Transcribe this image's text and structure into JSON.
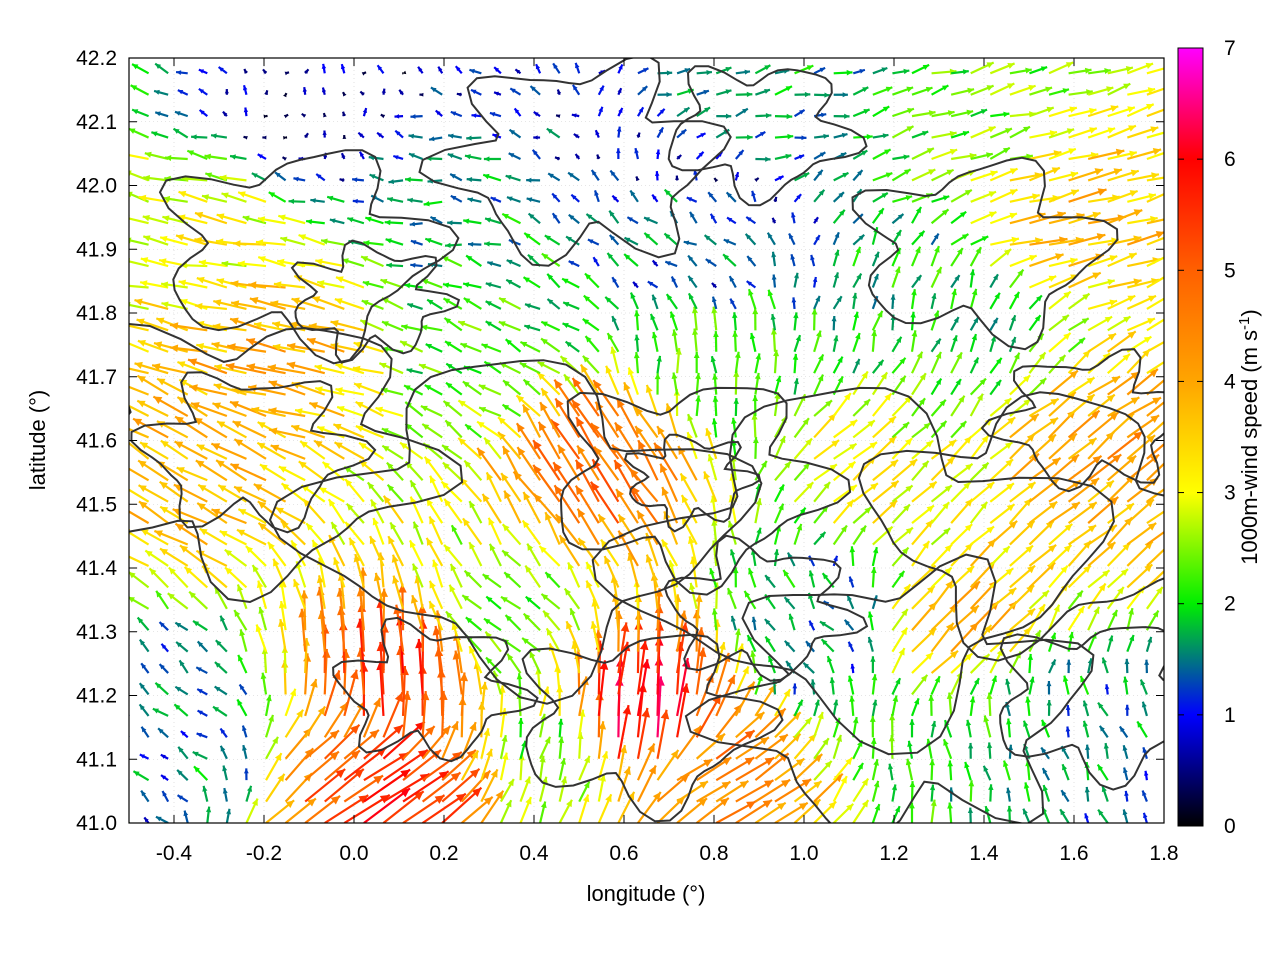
{
  "chart_data": {
    "type": "vector-field",
    "xlabel": "longitude (°)",
    "ylabel": "latitude (°)",
    "xlim": [
      -0.5,
      1.8
    ],
    "ylim": [
      41.0,
      42.2
    ],
    "x_ticks": [
      "-0.4",
      "-0.2",
      "0.0",
      "0.2",
      "0.4",
      "0.6",
      "0.8",
      "1.0",
      "1.2",
      "1.4",
      "1.6",
      "1.8"
    ],
    "y_ticks": [
      "41.0",
      "41.1",
      "41.2",
      "41.3",
      "41.4",
      "41.5",
      "41.6",
      "41.7",
      "41.8",
      "41.9",
      "42.0",
      "42.1",
      "42.2"
    ],
    "grid": true,
    "colorbar": {
      "label_main": "1000m-wind speed (m s",
      "label_sup": "-1",
      "label_end": ")",
      "range": [
        0,
        7
      ],
      "ticks": [
        "0",
        "1",
        "2",
        "3",
        "4",
        "5",
        "6",
        "7"
      ],
      "stops": [
        {
          "v": 0,
          "color": "#000000"
        },
        {
          "v": 1,
          "color": "#0000ff"
        },
        {
          "v": 2,
          "color": "#00ee00"
        },
        {
          "v": 3,
          "color": "#ffff00"
        },
        {
          "v": 4,
          "color": "#ffa500"
        },
        {
          "v": 5,
          "color": "#ff6000"
        },
        {
          "v": 6,
          "color": "#ff0000"
        },
        {
          "v": 7,
          "color": "#ff00ff"
        }
      ]
    },
    "regions": [
      {
        "lon": -0.35,
        "lat": 41.55,
        "u": -3.3,
        "v": 1.8
      },
      {
        "lon": -0.15,
        "lat": 41.75,
        "u": -3.8,
        "v": 0.9
      },
      {
        "lon": -0.3,
        "lat": 41.9,
        "u": -3.0,
        "v": 0.6
      },
      {
        "lon": -0.05,
        "lat": 42.12,
        "u": 0.0,
        "v": 0.5
      },
      {
        "lon": 0.15,
        "lat": 42.0,
        "u": -1.5,
        "v": 0.2
      },
      {
        "lon": -0.42,
        "lat": 41.15,
        "u": -1.2,
        "v": 0.8
      },
      {
        "lon": 0.12,
        "lat": 41.2,
        "u": -0.3,
        "v": 5.6
      },
      {
        "lon": 0.05,
        "lat": 41.05,
        "u": 4.5,
        "v": 3.2
      },
      {
        "lon": 0.35,
        "lat": 41.3,
        "u": -1.8,
        "v": 1.7
      },
      {
        "lon": 0.58,
        "lat": 41.55,
        "u": -2.6,
        "v": 4.0
      },
      {
        "lon": 0.62,
        "lat": 41.15,
        "u": 0.5,
        "v": 6.2
      },
      {
        "lon": 0.78,
        "lat": 41.05,
        "u": 3.8,
        "v": 2.4
      },
      {
        "lon": 0.8,
        "lat": 41.7,
        "u": 0.0,
        "v": 2.2
      },
      {
        "lon": 0.75,
        "lat": 41.9,
        "u": -1.0,
        "v": 0.8
      },
      {
        "lon": 0.9,
        "lat": 42.12,
        "u": 1.5,
        "v": 0.4
      },
      {
        "lon": 1.05,
        "lat": 41.3,
        "u": -1.0,
        "v": 1.2
      },
      {
        "lon": 1.12,
        "lat": 41.55,
        "u": 2.3,
        "v": 2.0
      },
      {
        "lon": 1.3,
        "lat": 41.8,
        "u": 0.5,
        "v": 1.8
      },
      {
        "lon": 1.4,
        "lat": 41.12,
        "u": -0.3,
        "v": 2.0
      },
      {
        "lon": 1.6,
        "lat": 41.1,
        "u": -0.6,
        "v": 1.4
      },
      {
        "lon": 1.65,
        "lat": 41.55,
        "u": 3.2,
        "v": 2.4
      },
      {
        "lon": 1.55,
        "lat": 41.95,
        "u": 3.6,
        "v": 0.9
      },
      {
        "lon": 1.35,
        "lat": 42.1,
        "u": 2.2,
        "v": 0.7
      },
      {
        "lon": 0.3,
        "lat": 41.75,
        "u": -2.0,
        "v": 0.8
      },
      {
        "lon": 1.3,
        "lat": 41.3,
        "u": 2.8,
        "v": 2.6
      },
      {
        "lon": 0.45,
        "lat": 41.1,
        "u": 0.6,
        "v": 2.2
      }
    ]
  }
}
